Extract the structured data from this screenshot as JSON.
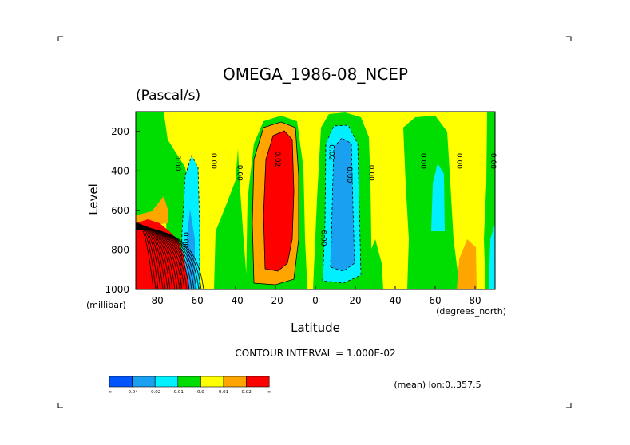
{
  "title": "OMEGA_1986-08_NCEP",
  "units": "(Pascal/s)",
  "colors": {
    "c_lt_m04": "#0055ff",
    "c_m04_m02": "#1aa0f0",
    "c_m02_m01": "#00f0ff",
    "c_m01_0": "#00dd00",
    "c_0_01": "#ffff00",
    "c_01_02": "#ffa500",
    "c_gt_02": "#ff0000"
  },
  "chart_data": {
    "type": "contour",
    "variable": "OMEGA",
    "xlabel": "Latitude",
    "xunits": "(degrees_north)",
    "ylabel": "Level",
    "yunits": "(millibar)",
    "xlim": [
      -90,
      90
    ],
    "ylim": [
      1000,
      100
    ],
    "x_ticks": [
      -80,
      -60,
      -40,
      -20,
      0,
      20,
      40,
      60,
      80
    ],
    "y_ticks": [
      200,
      400,
      600,
      800,
      1000
    ],
    "contour_interval_text": "CONTOUR INTERVAL = 1.000E-02",
    "mean_text": "(mean) lon:0..357.5",
    "colorbar_labels": [
      "-∞",
      "-0.04",
      "-0.02",
      "-0.01",
      "0.0",
      "0.01",
      "0.02",
      "∞"
    ],
    "contour_labels": [
      {
        "text": "0.00",
        "lat": -70,
        "lev": 360
      },
      {
        "text": "0.00",
        "lat": -52,
        "lev": 350
      },
      {
        "text": "0.00",
        "lat": -39,
        "lev": 410
      },
      {
        "text": "0.02",
        "lat": -20,
        "lev": 340
      },
      {
        "text": "-0.02",
        "lat": 7,
        "lev": 300
      },
      {
        "text": "0.00",
        "lat": 16,
        "lev": 420
      },
      {
        "text": "0.00",
        "lat": 27,
        "lev": 410
      },
      {
        "text": "0.00",
        "lat": 53,
        "lev": 350
      },
      {
        "text": "0.00",
        "lat": 71,
        "lev": 350
      },
      {
        "text": "0.00",
        "lat": 88,
        "lev": 350
      },
      {
        "text": "0.00",
        "lat": -66,
        "lev": 750
      },
      {
        "text": "0.00",
        "lat": 3,
        "lev": 740
      }
    ]
  }
}
